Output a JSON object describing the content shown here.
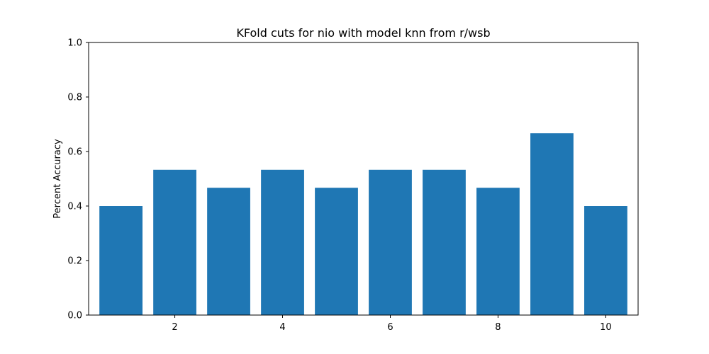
{
  "chart_data": {
    "type": "bar",
    "title": "KFold cuts for nio with model knn from r/wsb",
    "xlabel": "",
    "ylabel": "Percent Accuracy",
    "x": [
      1,
      2,
      3,
      4,
      5,
      6,
      7,
      8,
      9,
      10
    ],
    "values": [
      0.4,
      0.533,
      0.467,
      0.533,
      0.467,
      0.533,
      0.533,
      0.467,
      0.667,
      0.4
    ],
    "xlim": [
      0.4,
      10.6
    ],
    "ylim": [
      0.0,
      1.0
    ],
    "xticks": [
      2,
      4,
      6,
      8,
      10
    ],
    "xtick_labels": [
      "2",
      "4",
      "6",
      "8",
      "10"
    ],
    "yticks": [
      0.0,
      0.2,
      0.4,
      0.6,
      0.8,
      1.0
    ],
    "ytick_labels": [
      "0.0",
      "0.2",
      "0.4",
      "0.6",
      "0.8",
      "1.0"
    ],
    "bar_color": "#1f77b4",
    "grid": false,
    "legend": "none"
  }
}
